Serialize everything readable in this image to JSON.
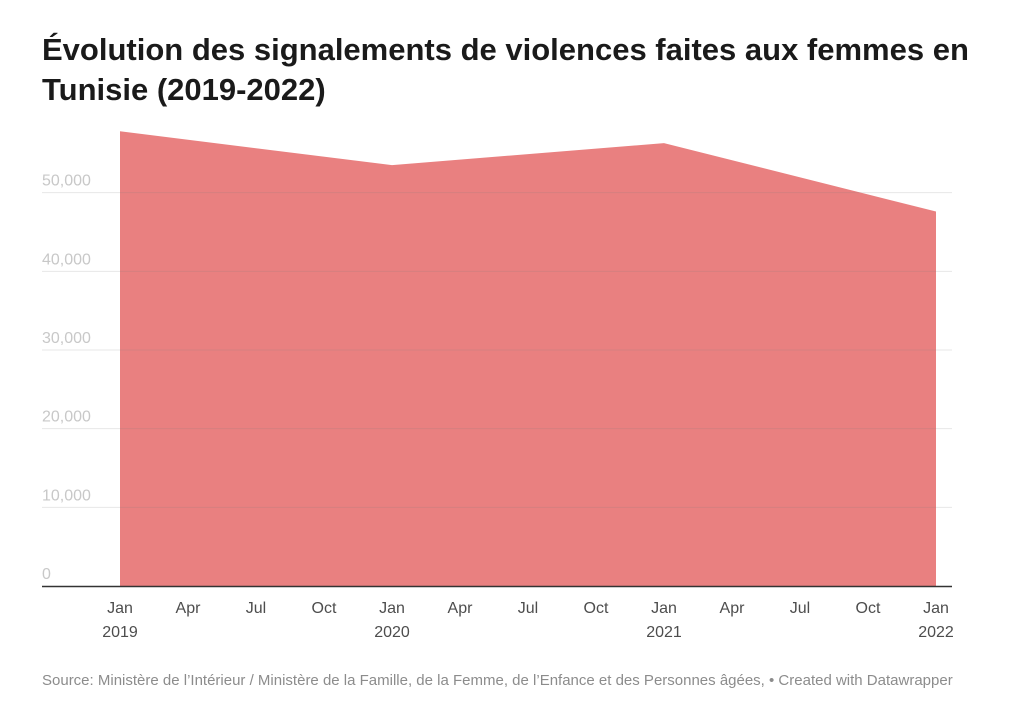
{
  "chart_data": {
    "type": "area",
    "title": "Évolution des signalements de violences faites aux femmes en Tunisie (2019-2022)",
    "x": [
      "2019-01",
      "2020-01",
      "2021-01",
      "2022-01"
    ],
    "values": [
      57800,
      53500,
      56300,
      47600
    ],
    "ylim": [
      0,
      60000
    ],
    "yticks": [
      0,
      10000,
      20000,
      30000,
      40000,
      50000
    ],
    "ytick_labels": [
      "0",
      "10,000",
      "20,000",
      "30,000",
      "40,000",
      "50,000"
    ],
    "xticks": [
      {
        "month": "Jan",
        "year": "2019"
      },
      {
        "month": "Apr",
        "year": ""
      },
      {
        "month": "Jul",
        "year": ""
      },
      {
        "month": "Oct",
        "year": ""
      },
      {
        "month": "Jan",
        "year": "2020"
      },
      {
        "month": "Apr",
        "year": ""
      },
      {
        "month": "Jul",
        "year": ""
      },
      {
        "month": "Oct",
        "year": ""
      },
      {
        "month": "Jan",
        "year": "2021"
      },
      {
        "month": "Apr",
        "year": ""
      },
      {
        "month": "Jul",
        "year": ""
      },
      {
        "month": "Oct",
        "year": ""
      },
      {
        "month": "Jan",
        "year": "2022"
      }
    ],
    "grid": true,
    "fill_color": "#e98080",
    "grid_color": "#e6e6e6",
    "tick_label_color": "#c8c8c8",
    "axis_label_color": "#4d4d4d"
  },
  "footer": {
    "source": "Source: Ministère de l’Intérieur / Ministère de la Famille, de la Femme, de l’Enfance et des Personnes âgées, • Created with Datawrapper"
  }
}
